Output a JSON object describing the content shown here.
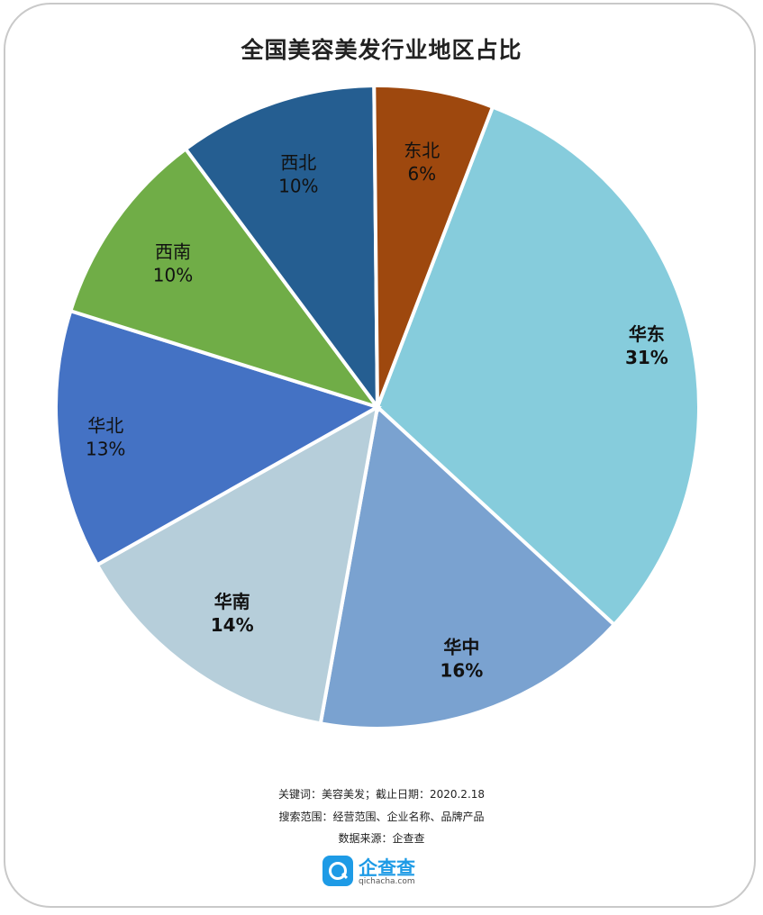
{
  "title": "全国美容美发行业地区占比",
  "chart_data": {
    "type": "pie",
    "title": "全国美容美发行业地区占比",
    "slices": [
      {
        "label": "华东",
        "value": 31,
        "display": "31%",
        "color": "#86ccdc",
        "bold": true
      },
      {
        "label": "华中",
        "value": 16,
        "display": "16%",
        "color": "#7aa2d0",
        "bold": true
      },
      {
        "label": "华南",
        "value": 14,
        "display": "14%",
        "color": "#b6ceda",
        "bold": true
      },
      {
        "label": "华北",
        "value": 13,
        "display": "13%",
        "color": "#4472c4",
        "bold": false
      },
      {
        "label": "西南",
        "value": 10,
        "display": "10%",
        "color": "#70ad47",
        "bold": false
      },
      {
        "label": "西北",
        "value": 10,
        "display": "10%",
        "color": "#255e91",
        "bold": false
      },
      {
        "label": "东北",
        "value": 6,
        "display": "6%",
        "color": "#9e480e",
        "bold": false
      }
    ]
  },
  "footer": {
    "line1": "关键词：美容美发；截止日期：2020.2.18",
    "line2": "搜索范围：经营范围、企业名称、品牌产品",
    "line3": "数据来源：企查查"
  },
  "logo": {
    "name": "企查查",
    "domain": "qichacha.com"
  }
}
